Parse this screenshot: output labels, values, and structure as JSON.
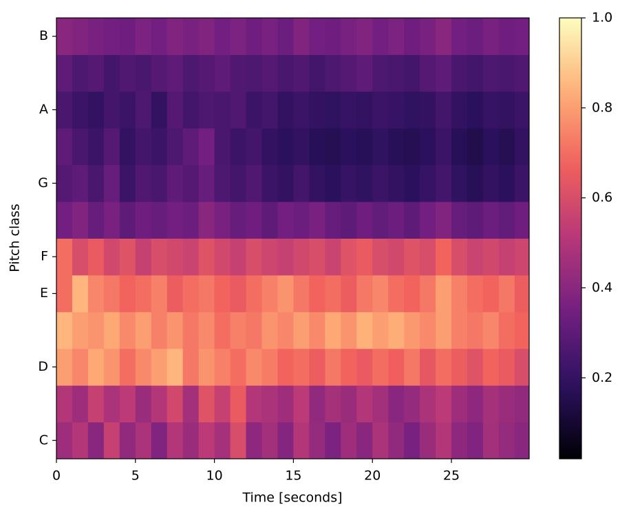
{
  "chart_data": {
    "type": "heatmap",
    "x_label": "Time [seconds]",
    "y_label": "Pitch class",
    "x": [
      0,
      1,
      2,
      3,
      4,
      5,
      6,
      7,
      8,
      9,
      10,
      11,
      12,
      13,
      14,
      15,
      16,
      17,
      18,
      19,
      20,
      21,
      22,
      23,
      24,
      25,
      26,
      27,
      28,
      29
    ],
    "categories": [
      "C",
      null,
      "D",
      null,
      "E",
      "F",
      null,
      "G",
      null,
      "A",
      null,
      "B"
    ],
    "z": [
      [
        0.45,
        0.5,
        0.4,
        0.55,
        0.42,
        0.48,
        0.38,
        0.5,
        0.44,
        0.52,
        0.47,
        0.6,
        0.41,
        0.46,
        0.39,
        0.5,
        0.43,
        0.37,
        0.45,
        0.4,
        0.48,
        0.42,
        0.36,
        0.44,
        0.5,
        0.41,
        0.38,
        0.46,
        0.43,
        0.4
      ],
      [
        0.5,
        0.45,
        0.55,
        0.48,
        0.52,
        0.44,
        0.5,
        0.58,
        0.46,
        0.62,
        0.55,
        0.65,
        0.5,
        0.48,
        0.45,
        0.52,
        0.42,
        0.47,
        0.44,
        0.5,
        0.46,
        0.4,
        0.43,
        0.48,
        0.52,
        0.45,
        0.41,
        0.47,
        0.44,
        0.42
      ],
      [
        0.8,
        0.75,
        0.82,
        0.78,
        0.7,
        0.76,
        0.8,
        0.85,
        0.72,
        0.78,
        0.74,
        0.7,
        0.76,
        0.73,
        0.68,
        0.7,
        0.66,
        0.72,
        0.68,
        0.65,
        0.7,
        0.67,
        0.72,
        0.64,
        0.7,
        0.66,
        0.62,
        0.68,
        0.65,
        0.6
      ],
      [
        0.85,
        0.8,
        0.78,
        0.82,
        0.76,
        0.8,
        0.74,
        0.78,
        0.72,
        0.76,
        0.7,
        0.74,
        0.72,
        0.78,
        0.75,
        0.8,
        0.76,
        0.82,
        0.78,
        0.84,
        0.8,
        0.83,
        0.79,
        0.76,
        0.8,
        0.74,
        0.72,
        0.75,
        0.7,
        0.68
      ],
      [
        0.7,
        0.85,
        0.75,
        0.72,
        0.68,
        0.7,
        0.74,
        0.66,
        0.7,
        0.72,
        0.68,
        0.65,
        0.7,
        0.74,
        0.78,
        0.72,
        0.68,
        0.7,
        0.66,
        0.72,
        0.75,
        0.7,
        0.68,
        0.72,
        0.8,
        0.74,
        0.7,
        0.68,
        0.72,
        0.66
      ],
      [
        0.7,
        0.6,
        0.65,
        0.58,
        0.62,
        0.55,
        0.6,
        0.58,
        0.56,
        0.62,
        0.58,
        0.55,
        0.6,
        0.57,
        0.55,
        0.58,
        0.6,
        0.56,
        0.62,
        0.65,
        0.6,
        0.58,
        0.62,
        0.6,
        0.68,
        0.6,
        0.56,
        0.58,
        0.55,
        0.57
      ],
      [
        0.35,
        0.38,
        0.32,
        0.36,
        0.3,
        0.34,
        0.32,
        0.35,
        0.33,
        0.4,
        0.36,
        0.32,
        0.34,
        0.3,
        0.35,
        0.33,
        0.36,
        0.32,
        0.3,
        0.34,
        0.31,
        0.33,
        0.3,
        0.35,
        0.38,
        0.32,
        0.3,
        0.33,
        0.31,
        0.34
      ],
      [
        0.28,
        0.3,
        0.25,
        0.32,
        0.22,
        0.27,
        0.25,
        0.3,
        0.28,
        0.32,
        0.26,
        0.24,
        0.27,
        0.22,
        0.2,
        0.24,
        0.2,
        0.18,
        0.21,
        0.19,
        0.22,
        0.2,
        0.18,
        0.21,
        0.24,
        0.19,
        0.17,
        0.2,
        0.18,
        0.22
      ],
      [
        0.3,
        0.25,
        0.22,
        0.28,
        0.2,
        0.24,
        0.22,
        0.26,
        0.3,
        0.35,
        0.25,
        0.22,
        0.24,
        0.2,
        0.18,
        0.2,
        0.17,
        0.16,
        0.18,
        0.17,
        0.19,
        0.17,
        0.16,
        0.18,
        0.22,
        0.17,
        0.15,
        0.18,
        0.16,
        0.2
      ],
      [
        0.25,
        0.22,
        0.2,
        0.24,
        0.22,
        0.26,
        0.2,
        0.28,
        0.24,
        0.26,
        0.25,
        0.27,
        0.22,
        0.24,
        0.2,
        0.22,
        0.2,
        0.19,
        0.21,
        0.2,
        0.22,
        0.21,
        0.19,
        0.2,
        0.24,
        0.2,
        0.18,
        0.21,
        0.2,
        0.22
      ],
      [
        0.3,
        0.26,
        0.28,
        0.24,
        0.27,
        0.25,
        0.28,
        0.3,
        0.26,
        0.28,
        0.3,
        0.27,
        0.26,
        0.28,
        0.25,
        0.27,
        0.24,
        0.26,
        0.28,
        0.3,
        0.26,
        0.25,
        0.24,
        0.28,
        0.3,
        0.25,
        0.24,
        0.26,
        0.25,
        0.27
      ],
      [
        0.4,
        0.38,
        0.36,
        0.35,
        0.34,
        0.37,
        0.35,
        0.38,
        0.36,
        0.38,
        0.35,
        0.37,
        0.34,
        0.36,
        0.33,
        0.38,
        0.35,
        0.34,
        0.36,
        0.38,
        0.35,
        0.37,
        0.34,
        0.36,
        0.4,
        0.35,
        0.33,
        0.36,
        0.34,
        0.35
      ]
    ],
    "xlim": [
      0,
      29.92
    ],
    "xticks": [
      0,
      5,
      10,
      15,
      20,
      25
    ],
    "colormap": "magma",
    "clim": [
      0.02,
      1
    ],
    "cticks": [
      0.2,
      0.4,
      0.6,
      0.8,
      {
        "value": 1,
        "label": "1.0"
      }
    ]
  }
}
